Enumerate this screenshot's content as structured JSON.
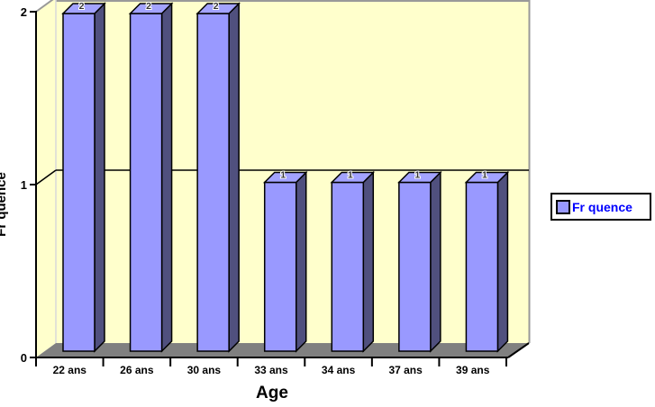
{
  "chart_data": {
    "type": "bar",
    "subtype": "3d-column",
    "title": "",
    "xlabel": "Age",
    "ylabel": "Fr quence",
    "categories": [
      "22 ans",
      "26 ans",
      "30 ans",
      "33 ans",
      "34 ans",
      "37 ans",
      "39 ans"
    ],
    "series": [
      {
        "name": "Fr quence",
        "values": [
          2,
          2,
          2,
          1,
          1,
          1,
          1
        ]
      }
    ],
    "data_labels_shown": true,
    "ylim": [
      0,
      2
    ],
    "yticks": [
      0,
      1,
      2
    ],
    "grid": "major-horizontal",
    "legend": {
      "position": "right",
      "entries": [
        "Fr quence"
      ]
    },
    "colors": {
      "bar_front": "#9999FF",
      "bar_side": "#50507E",
      "bar_top": "#A3A3FF",
      "wall": "#FFFFCC",
      "floor": "#808080",
      "axis": "#000000",
      "wall_border": "#999999",
      "wall_corner": "#D9D9D9",
      "legend_text": "#0000FF",
      "data_label": "#333333"
    }
  }
}
